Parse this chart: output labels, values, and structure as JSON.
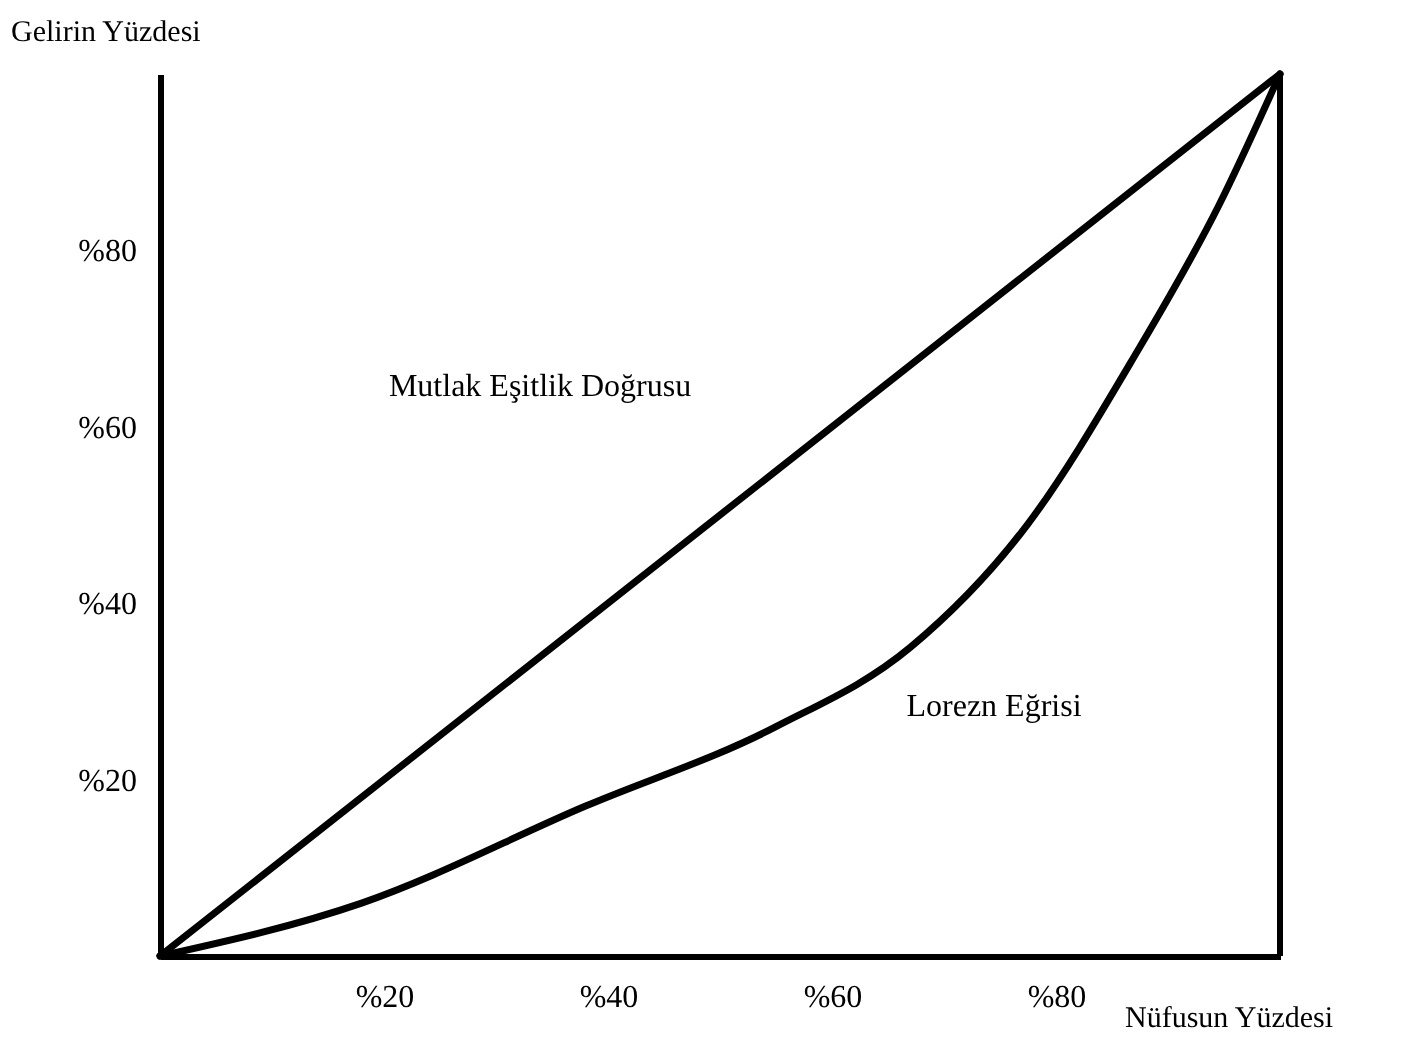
{
  "chart_data": {
    "type": "line",
    "xlabel": "Nüfusun Yüzdesi",
    "ylabel": "Gelirin Yüzdesi",
    "xlim": [
      0,
      100
    ],
    "ylim": [
      0,
      100
    ],
    "xticks": [
      {
        "value": 20,
        "label": "%20"
      },
      {
        "value": 40,
        "label": "%40"
      },
      {
        "value": 60,
        "label": "%60"
      },
      {
        "value": 80,
        "label": "%80"
      }
    ],
    "yticks": [
      {
        "value": 20,
        "label": "%20"
      },
      {
        "value": 40,
        "label": "%40"
      },
      {
        "value": 60,
        "label": "%60"
      },
      {
        "value": 80,
        "label": "%80"
      }
    ],
    "grid": false,
    "marker": "none",
    "line_style": "solid",
    "series": [
      {
        "color": "#000000",
        "x": [
          0,
          100
        ],
        "values": [
          0,
          100
        ]
      },
      {
        "color": "#000000",
        "x": [
          0,
          18,
          38,
          55,
          67,
          77.5,
          87,
          94.5,
          100
        ],
        "values": [
          0,
          6,
          17,
          26,
          35,
          49,
          68,
          85,
          100
        ]
      }
    ],
    "ref_lines": [
      {
        "axis": "x",
        "value": 100,
        "color": "#000000"
      }
    ],
    "annotations": [
      "Mutlak Eşitlik Doğrusu",
      "Lorezn Eğrisi"
    ]
  }
}
